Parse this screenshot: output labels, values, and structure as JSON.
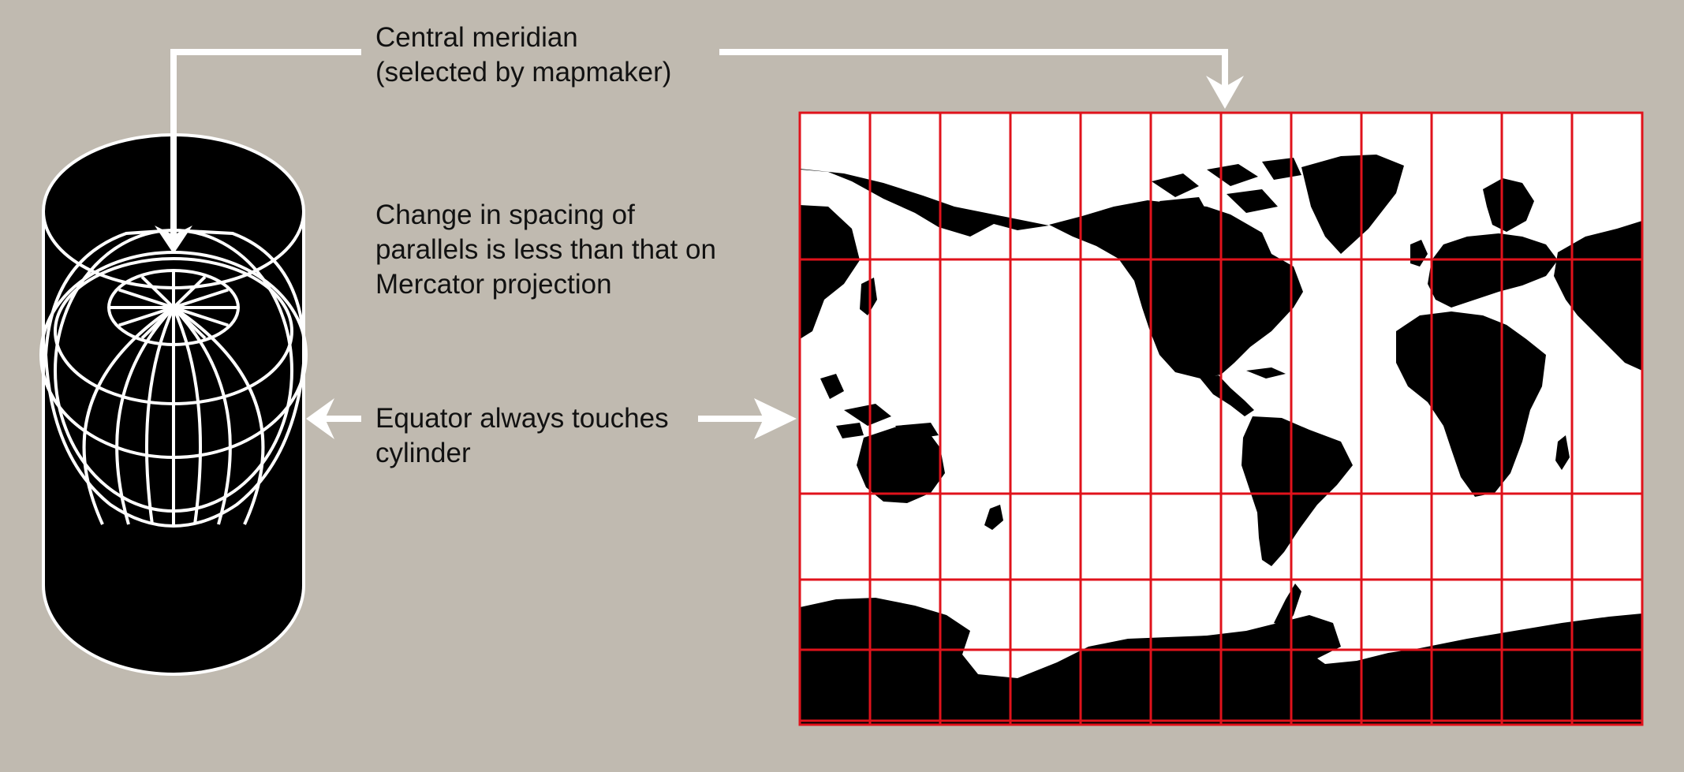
{
  "labels": {
    "central_meridian": [
      "Central meridian",
      "(selected by mapmaker)"
    ],
    "spacing_note": [
      "Change in spacing of",
      "parallels is less than that on",
      "Mercator projection"
    ],
    "equator_note": [
      "Equator always touches",
      "cylinder"
    ]
  },
  "colors": {
    "background": "#c0bab0",
    "ink": "#000000",
    "line": "#ffffff",
    "grid": "#e0121b",
    "map_ocean": "#ffffff",
    "map_land": "#000000"
  },
  "map": {
    "projection": "transverse-cylindrical",
    "meridians": 12,
    "parallels": 6
  }
}
